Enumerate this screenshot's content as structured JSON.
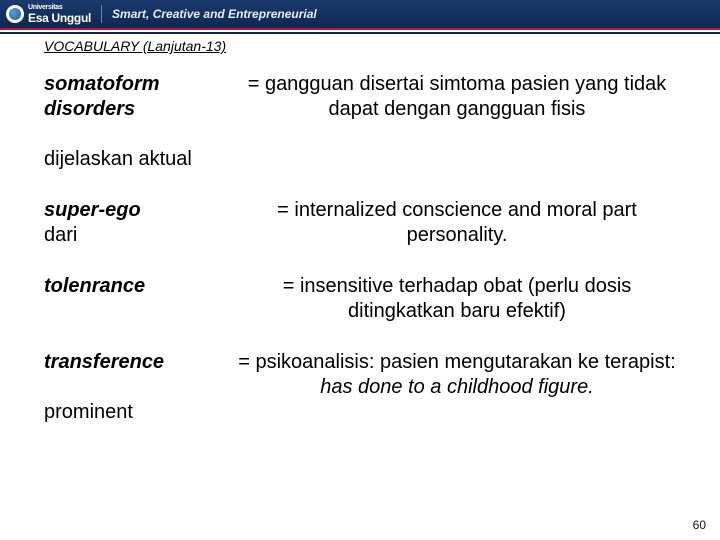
{
  "header": {
    "logo_small": "Universitas",
    "logo_main": "Esa Unggul",
    "tagline": "Smart, Creative and Entrepreneurial",
    "colors": {
      "bg_top": "#1a3a6e",
      "bg_bottom": "#0d2850",
      "stripe_red": "#c0152f"
    }
  },
  "section_title_prefix": "VOCABULARY",
  "section_title_suffix": " (Lanjutan-13)",
  "entries": [
    {
      "term_bold": "somatoform disorders",
      "term_plain": "dijelaskan aktual",
      "def": "= gangguan disertai simtoma pasien yang tidak dapat dengan gangguan fisis"
    },
    {
      "term_bold": "super-ego",
      "term_plain": "dari",
      "def": "= internalized conscience and moral part personality."
    },
    {
      "term_bold": "tolenrance",
      "term_plain": "",
      "def": "= insensitive terhadap obat (perlu dosis ditingkatkan baru efektif)"
    },
    {
      "term_bold": "transference",
      "term_plain": "prominent",
      "def_prefix": "= psikoanalisis: pasien mengutarakan ke terapist: ",
      "def_italic": "has done to a childhood figure."
    }
  ],
  "page_number": "60"
}
